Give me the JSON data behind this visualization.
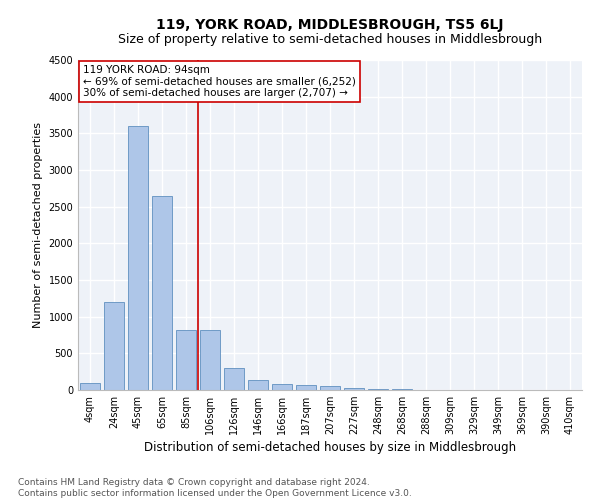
{
  "title": "119, YORK ROAD, MIDDLESBROUGH, TS5 6LJ",
  "subtitle": "Size of property relative to semi-detached houses in Middlesbrough",
  "xlabel": "Distribution of semi-detached houses by size in Middlesbrough",
  "ylabel": "Number of semi-detached properties",
  "categories": [
    "4sqm",
    "24sqm",
    "45sqm",
    "65sqm",
    "85sqm",
    "106sqm",
    "126sqm",
    "146sqm",
    "166sqm",
    "187sqm",
    "207sqm",
    "227sqm",
    "248sqm",
    "268sqm",
    "288sqm",
    "309sqm",
    "329sqm",
    "349sqm",
    "369sqm",
    "390sqm",
    "410sqm"
  ],
  "values": [
    100,
    1200,
    3600,
    2650,
    820,
    820,
    300,
    140,
    80,
    65,
    50,
    30,
    15,
    8,
    5,
    3,
    2,
    1,
    1,
    0,
    0
  ],
  "bar_color": "#aec6e8",
  "bar_edge_color": "#6090c0",
  "vline_color": "#cc0000",
  "vline_x": 4.5,
  "annotation_text": "119 YORK ROAD: 94sqm\n← 69% of semi-detached houses are smaller (6,252)\n30% of semi-detached houses are larger (2,707) →",
  "annotation_box_color": "#ffffff",
  "annotation_box_edge": "#cc0000",
  "ylim": [
    0,
    4500
  ],
  "yticks": [
    0,
    500,
    1000,
    1500,
    2000,
    2500,
    3000,
    3500,
    4000,
    4500
  ],
  "footer_line1": "Contains HM Land Registry data © Crown copyright and database right 2024.",
  "footer_line2": "Contains public sector information licensed under the Open Government Licence v3.0.",
  "bg_color": "#eef2f8",
  "grid_color": "#ffffff",
  "title_fontsize": 10,
  "subtitle_fontsize": 9,
  "tick_fontsize": 7,
  "ylabel_fontsize": 8,
  "xlabel_fontsize": 8.5,
  "footer_fontsize": 6.5,
  "annotation_fontsize": 7.5
}
